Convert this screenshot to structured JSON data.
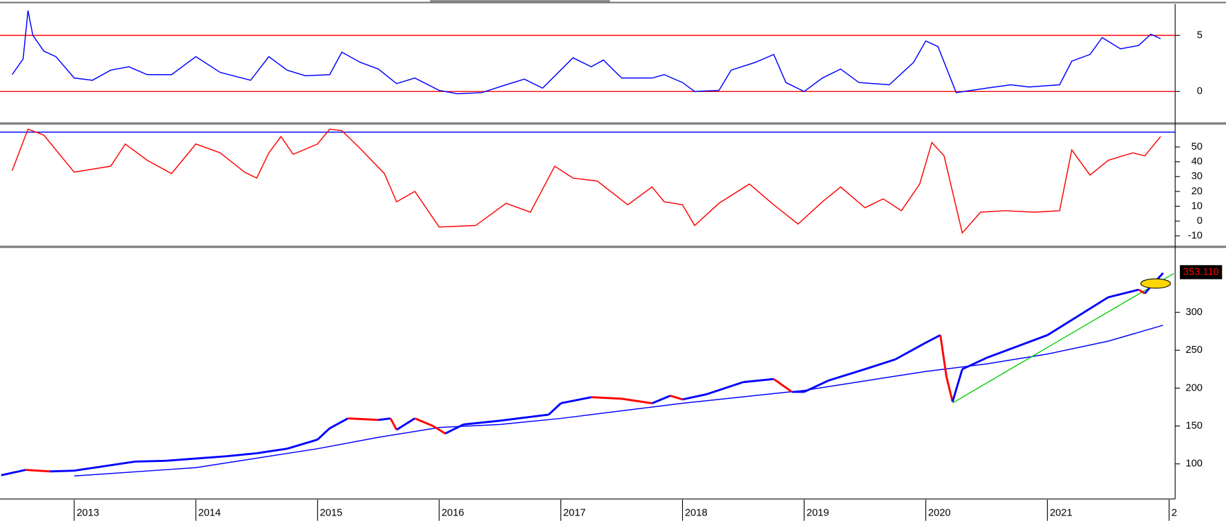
{
  "chart_data": [
    {
      "type": "line",
      "xlim": [
        2012.39,
        2022.05
      ],
      "ylim": [
        -2.64,
        7.78
      ],
      "yticks": [
        0,
        5
      ],
      "hlines": [
        0,
        5
      ],
      "hline_color": "#ff0000",
      "series": [
        {
          "color": "#0000ff",
          "x": [
            2012.49,
            2012.58,
            2012.62,
            2012.66,
            2012.75,
            2012.85,
            2013.0,
            2013.15,
            2013.3,
            2013.45,
            2013.6,
            2013.8,
            2014.0,
            2014.2,
            2014.45,
            2014.6,
            2014.75,
            2014.9,
            2015.1,
            2015.2,
            2015.35,
            2015.5,
            2015.65,
            2015.8,
            2016.0,
            2016.15,
            2016.35,
            2016.55,
            2016.7,
            2016.85,
            2017.1,
            2017.25,
            2017.35,
            2017.5,
            2017.75,
            2017.85,
            2018.0,
            2018.1,
            2018.3,
            2018.4,
            2018.6,
            2018.75,
            2018.85,
            2019.0,
            2019.15,
            2019.3,
            2019.45,
            2019.7,
            2019.9,
            2020.0,
            2020.1,
            2020.25,
            2020.5,
            2020.7,
            2020.85,
            2021.1,
            2021.2,
            2021.35,
            2021.45,
            2021.6,
            2021.75,
            2021.85,
            2021.93
          ],
          "values": [
            1.5,
            2.9,
            7.2,
            5,
            3.6,
            3.1,
            1.2,
            1.0,
            1.9,
            2.2,
            1.5,
            1.5,
            3.1,
            1.7,
            1.0,
            3.1,
            1.9,
            1.4,
            1.5,
            3.5,
            2.6,
            2.0,
            0.7,
            1.2,
            0.1,
            -0.2,
            -0.1,
            0.6,
            1.1,
            0.3,
            3.0,
            2.2,
            2.8,
            1.2,
            1.2,
            1.5,
            0.8,
            0,
            0.1,
            1.9,
            2.6,
            3.3,
            0.8,
            0,
            1.2,
            2.0,
            0.8,
            0.6,
            2.6,
            4.5,
            4.0,
            -0.1,
            0.3,
            0.6,
            0.4,
            0.6,
            2.7,
            3.3,
            4.8,
            3.8,
            4.1,
            5.1,
            4.7
          ]
        }
      ]
    },
    {
      "type": "line",
      "xlim": [
        2012.39,
        2022.05
      ],
      "ylim": [
        -15.8,
        63.7
      ],
      "yticks": [
        -10,
        0,
        10,
        20,
        30,
        40,
        50
      ],
      "hlines": [
        60
      ],
      "hline_color": "#0000ff",
      "series": [
        {
          "color": "#ff0000",
          "x": [
            2012.49,
            2012.62,
            2012.75,
            2013.0,
            2013.3,
            2013.42,
            2013.6,
            2013.8,
            2014.0,
            2014.2,
            2014.4,
            2014.5,
            2014.6,
            2014.7,
            2014.8,
            2015.0,
            2015.1,
            2015.2,
            2015.35,
            2015.55,
            2015.65,
            2015.8,
            2016.0,
            2016.3,
            2016.55,
            2016.75,
            2016.95,
            2017.1,
            2017.3,
            2017.55,
            2017.75,
            2017.85,
            2018.0,
            2018.1,
            2018.3,
            2018.55,
            2018.75,
            2018.95,
            2019.15,
            2019.3,
            2019.5,
            2019.65,
            2019.8,
            2019.95,
            2020.05,
            2020.15,
            2020.3,
            2020.45,
            2020.65,
            2020.9,
            2021.1,
            2021.2,
            2021.35,
            2021.5,
            2021.7,
            2021.8,
            2021.93
          ],
          "values": [
            34,
            62,
            58,
            33,
            37,
            52,
            41,
            32,
            52,
            46,
            33,
            29,
            46,
            57,
            45,
            52,
            62,
            61,
            49,
            32,
            13,
            20,
            -4,
            -3,
            12,
            6,
            37,
            29,
            27,
            11,
            23,
            13,
            11,
            -3,
            12,
            25,
            11,
            -2,
            13,
            23,
            9,
            15,
            7,
            25,
            53,
            44,
            -8,
            6,
            7,
            6,
            7,
            48,
            31,
            41,
            46,
            44,
            57
          ]
        }
      ]
    },
    {
      "type": "price",
      "xlim": [
        2012.39,
        2022.05
      ],
      "ylim": [
        55.7,
        384.5
      ],
      "yticks": [
        100,
        150,
        200,
        250,
        300
      ],
      "xticks": [
        2013,
        2014,
        2015,
        2016,
        2017,
        2018,
        2019,
        2020,
        2021,
        {
          "value": 2022,
          "label": "2"
        }
      ],
      "up_color": "#0000ff",
      "down_color": "#ff0000",
      "x": [
        2012.4,
        2012.6,
        2012.8,
        2013.0,
        2013.25,
        2013.5,
        2013.75,
        2014.0,
        2014.25,
        2014.5,
        2014.75,
        2015.0,
        2015.1,
        2015.25,
        2015.5,
        2015.6,
        2015.65,
        2015.8,
        2015.95,
        2016.05,
        2016.2,
        2016.5,
        2016.75,
        2016.9,
        2017.0,
        2017.25,
        2017.5,
        2017.75,
        2017.9,
        2018.0,
        2018.2,
        2018.5,
        2018.75,
        2018.9,
        2019.0,
        2019.2,
        2019.5,
        2019.75,
        2020.0,
        2020.12,
        2020.17,
        2020.22,
        2020.3,
        2020.5,
        2020.75,
        2021.0,
        2021.25,
        2021.5,
        2021.75,
        2021.8,
        2021.95
      ],
      "values": [
        85,
        92,
        90,
        91,
        97,
        103,
        104,
        107,
        110,
        114,
        120,
        132,
        147,
        160,
        158,
        160,
        145,
        160,
        150,
        140,
        152,
        157,
        162,
        165,
        180,
        188,
        186,
        180,
        190,
        185,
        192,
        208,
        212,
        195,
        195,
        210,
        225,
        238,
        260,
        270,
        215,
        182,
        225,
        240,
        255,
        270,
        295,
        320,
        330,
        325,
        352
      ],
      "moving_average": {
        "color": "#0000ff",
        "x": [
          2013.0,
          2014.0,
          2015.0,
          2015.5,
          2016.0,
          2016.5,
          2017.0,
          2018.0,
          2019.0,
          2020.0,
          2020.5,
          2021.0,
          2021.5,
          2021.95
        ],
        "values": [
          84,
          95,
          120,
          135,
          148,
          152,
          160,
          180,
          197,
          222,
          232,
          245,
          262,
          283
        ]
      },
      "trendline": {
        "color": "#00cc00",
        "x": [
          2020.22,
          2022.04
        ],
        "values": [
          180.4,
          351.5
        ]
      },
      "price_marker": {
        "value": 353.11,
        "label": "353.110"
      }
    }
  ]
}
